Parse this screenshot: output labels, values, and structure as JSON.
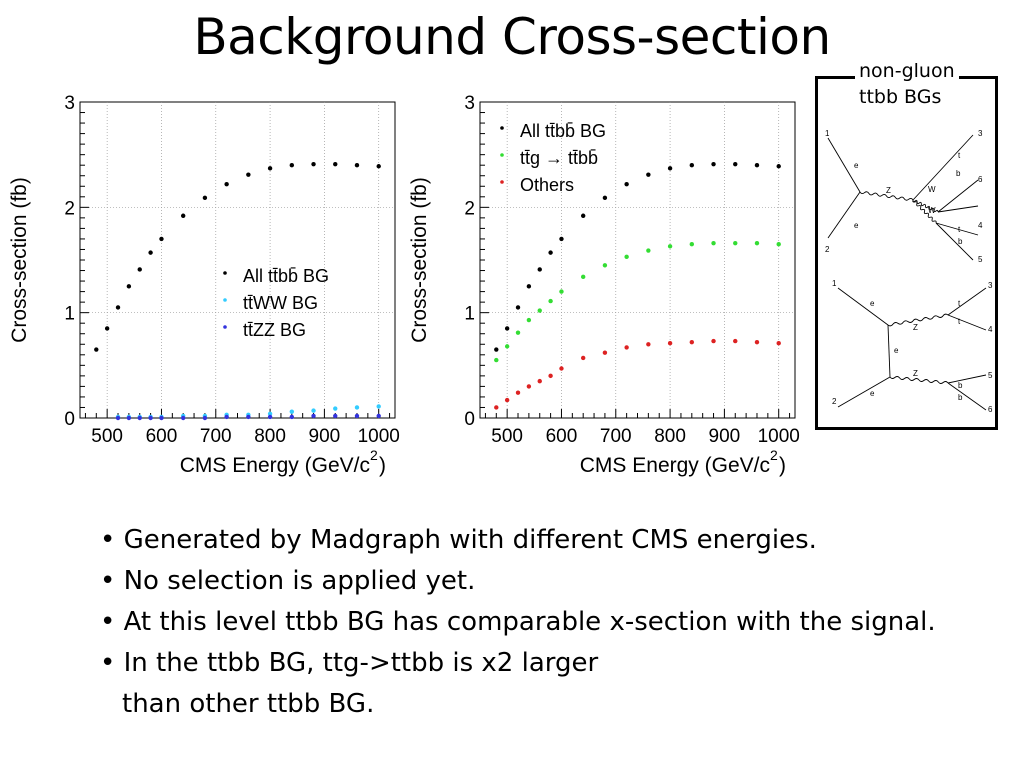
{
  "slide": {
    "title": "Background Cross-section",
    "diagram_label_1": "non-gluon",
    "diagram_label_2": "ttbb BGs",
    "bullets": [
      "• Generated by Madgraph with different CMS energies.",
      "• No selection is applied yet.",
      "• At this level ttbb BG has comparable x-section with the signal.",
      "• In the ttbb BG, ttg->ttbb is x2 larger",
      "than other ttbb BG."
    ]
  },
  "diagram": {
    "top": {
      "labels": [
        "1",
        "2",
        "3",
        "6",
        "4",
        "5",
        "e",
        "e",
        "Z",
        "W",
        "W",
        "t",
        "b",
        "t",
        "b"
      ]
    },
    "bottom": {
      "labels": [
        "1",
        "2",
        "3",
        "4",
        "5",
        "6",
        "e",
        "e",
        "e",
        "Z",
        "Z",
        "t",
        "t",
        "b",
        "b"
      ]
    }
  },
  "chart_data": [
    {
      "type": "scatter",
      "xlabel": "CMS Energy (GeV/c",
      "xlabel_sup": "2",
      "xlabel_end": ")",
      "ylabel": "Cross-section (fb)",
      "xlim": [
        450,
        1030
      ],
      "ylim": [
        0,
        3
      ],
      "xticks": [
        500,
        600,
        700,
        800,
        900,
        1000
      ],
      "yticks": [
        0,
        1,
        2,
        3
      ],
      "grid": true,
      "legend_position": "center-right",
      "x": [
        480,
        500,
        520,
        540,
        560,
        580,
        600,
        640,
        680,
        720,
        760,
        800,
        840,
        880,
        920,
        960,
        1000
      ],
      "series": [
        {
          "name": "All tt̄bb̄ BG",
          "color": "#000000",
          "values": [
            0.65,
            0.85,
            1.05,
            1.25,
            1.41,
            1.57,
            1.7,
            1.92,
            2.09,
            2.22,
            2.31,
            2.37,
            2.4,
            2.41,
            2.41,
            2.4,
            2.39
          ]
        },
        {
          "name": "tt̄WW BG",
          "color": "#33ccff",
          "values": [
            null,
            null,
            0.01,
            0.01,
            0.01,
            0.01,
            0.01,
            0.02,
            0.02,
            0.03,
            0.03,
            0.04,
            0.06,
            0.07,
            0.09,
            0.1,
            0.11
          ]
        },
        {
          "name": "tt̄ZZ BG",
          "color": "#3333dd",
          "values": [
            null,
            null,
            0.0,
            0.0,
            0.0,
            0.0,
            0.0,
            0.0,
            0.0,
            0.01,
            0.01,
            0.01,
            0.01,
            0.02,
            0.02,
            0.02,
            0.02
          ]
        }
      ]
    },
    {
      "type": "scatter",
      "xlabel": "CMS Energy (GeV/c",
      "xlabel_sup": "2",
      "xlabel_end": ")",
      "ylabel": "Cross-section (fb)",
      "xlim": [
        450,
        1030
      ],
      "ylim": [
        0,
        3
      ],
      "xticks": [
        500,
        600,
        700,
        800,
        900,
        1000
      ],
      "yticks": [
        0,
        1,
        2,
        3
      ],
      "grid": true,
      "legend_position": "top-left",
      "x": [
        480,
        500,
        520,
        540,
        560,
        580,
        600,
        640,
        680,
        720,
        760,
        800,
        840,
        880,
        920,
        960,
        1000
      ],
      "series": [
        {
          "name": "All tt̄bb̄ BG",
          "color": "#000000",
          "values": [
            0.65,
            0.85,
            1.05,
            1.25,
            1.41,
            1.57,
            1.7,
            1.92,
            2.09,
            2.22,
            2.31,
            2.37,
            2.4,
            2.41,
            2.41,
            2.4,
            2.39
          ]
        },
        {
          "name": "tt̄g → tt̄bb̄",
          "color": "#33dd33",
          "values": [
            0.55,
            0.68,
            0.81,
            0.93,
            1.02,
            1.11,
            1.2,
            1.34,
            1.45,
            1.53,
            1.59,
            1.63,
            1.65,
            1.66,
            1.66,
            1.66,
            1.65
          ]
        },
        {
          "name": "Others",
          "color": "#dd2222",
          "values": [
            0.1,
            0.17,
            0.24,
            0.3,
            0.35,
            0.4,
            0.47,
            0.57,
            0.62,
            0.67,
            0.7,
            0.71,
            0.72,
            0.73,
            0.73,
            0.72,
            0.71
          ]
        }
      ]
    }
  ]
}
